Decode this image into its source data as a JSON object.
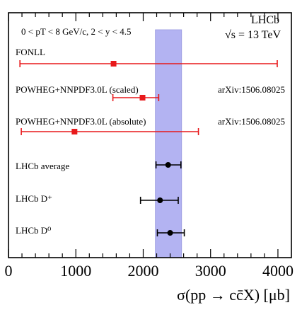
{
  "chart_data": {
    "type": "scatter",
    "title": "",
    "xlabel": "σ(pp → cc̄X) [μb]",
    "ylabel": "",
    "xlim": [
      0,
      4200
    ],
    "xticks": [
      "0",
      "1000",
      "2000",
      "3000",
      "4000"
    ],
    "xtick_values": [
      0,
      1000,
      2000,
      3000,
      4000
    ],
    "kinematics_label": "0 < pT < 8 GeV/c, 2 < y < 4.5",
    "experiment_label": "LHCb",
    "energy_label": "√s = 13 TeV",
    "band": {
      "low": 2180,
      "high": 2570,
      "color": "#b3b3f2"
    },
    "colors": {
      "theory": "#e8191b",
      "data": "#000000"
    },
    "series": [
      {
        "name": "FONLL",
        "value": 1560,
        "low": 170,
        "high": 3990,
        "kind": "theory",
        "reference": ""
      },
      {
        "name": "POWHEG+NNPDF3.0L (scaled)",
        "value": 1990,
        "low": 1550,
        "high": 2230,
        "kind": "theory",
        "reference": "arXiv:1506.08025"
      },
      {
        "name": "POWHEG+NNPDF3.0L (absolute)",
        "value": 980,
        "low": 190,
        "high": 2820,
        "kind": "theory",
        "reference": "arXiv:1506.08025"
      },
      {
        "name": "LHCb average",
        "value": 2370,
        "low": 2190,
        "high": 2560,
        "kind": "data",
        "reference": ""
      },
      {
        "name": "LHCb D⁺",
        "value": 2250,
        "low": 1960,
        "high": 2520,
        "kind": "data",
        "reference": ""
      },
      {
        "name": "LHCb D⁰",
        "value": 2400,
        "low": 2210,
        "high": 2610,
        "kind": "data",
        "reference": ""
      }
    ]
  }
}
